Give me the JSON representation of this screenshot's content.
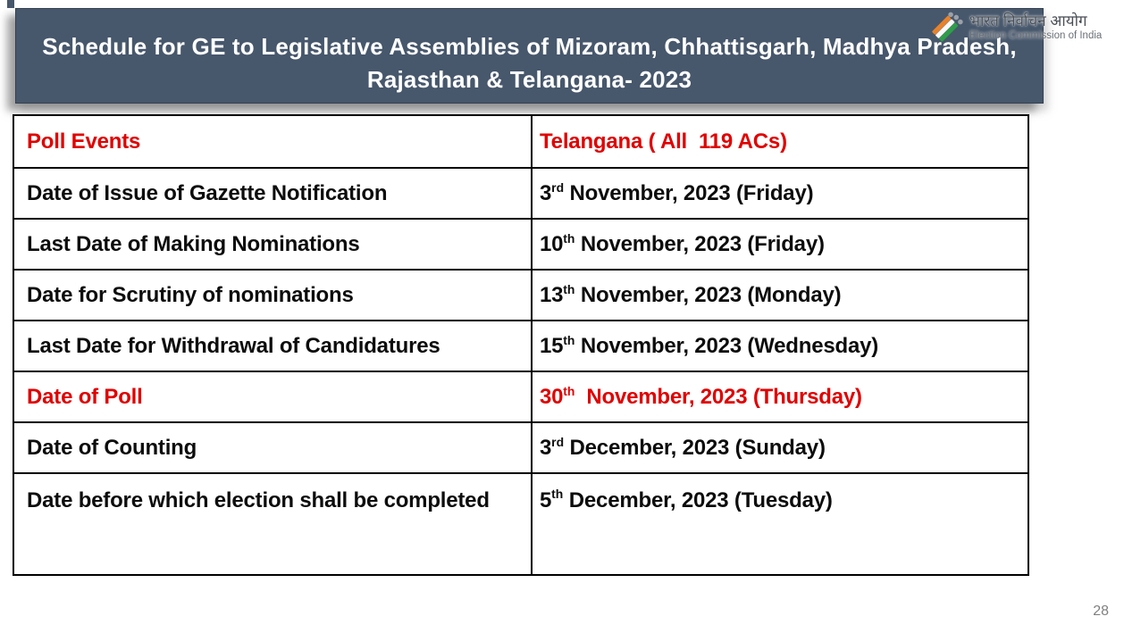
{
  "slide": {
    "title_line1": "Schedule for GE to Legislative Assemblies of Mizoram, Chhattisgarh, Madhya Pradesh,",
    "title_line2": "Rajasthan & Telangana- 2023",
    "page_number": "28"
  },
  "logo": {
    "hindi": "भारत निर्वाचन आयोग",
    "english": "Election Commission of India",
    "colors": {
      "saffron": "#E8822A",
      "white": "#FAFAFA",
      "green": "#2E9E48",
      "dots": "#9CA1A8"
    }
  },
  "colors": {
    "banner_bg": "#47576C",
    "title_text": "#FFFFFF",
    "accent_red": "#E00000",
    "body_text": "#0D0D0D",
    "table_border": "#000000",
    "page_number": "#808080"
  },
  "table": {
    "rows": [
      {
        "event": "Poll Events",
        "value": "Telangana ( All  119 ACs)",
        "red": true,
        "header": true
      },
      {
        "event": "Date of Issue of Gazette Notification",
        "value": "3rd November, 2023 (Friday)",
        "red": false
      },
      {
        "event": "Last Date of Making Nominations",
        "value": "10th November, 2023 (Friday)",
        "red": false
      },
      {
        "event": "Date for Scrutiny of nominations",
        "value": "13th November, 2023 (Monday)",
        "red": false
      },
      {
        "event": "Last Date for Withdrawal of Candidatures",
        "value": "15th November, 2023 (Wednesday)",
        "red": false
      },
      {
        "event": "Date of Poll",
        "value": "30th  November, 2023 (Thursday)",
        "red": true
      },
      {
        "event": "Date of Counting",
        "value": "3rd December, 2023 (Sunday)",
        "red": false
      },
      {
        "event": "Date before which election shall be completed",
        "value": "5th December, 2023 (Tuesday)",
        "red": false
      }
    ]
  }
}
